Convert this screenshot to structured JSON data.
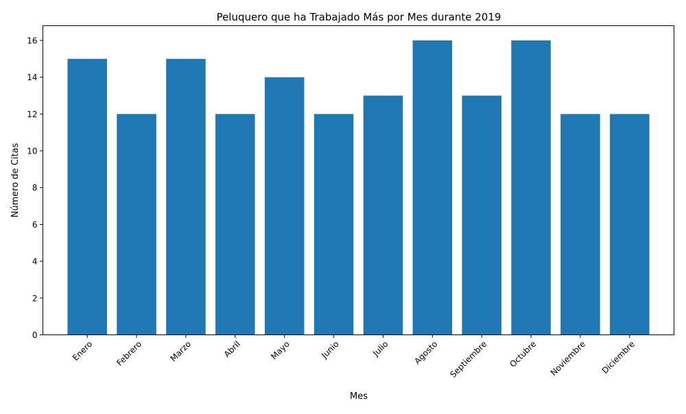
{
  "chart_data": {
    "type": "bar",
    "title": "Peluquero que ha Trabajado Más por Mes durante 2019",
    "xlabel": "Mes",
    "ylabel": "Número de Citas",
    "categories": [
      "Enero",
      "Febrero",
      "Marzo",
      "Abril",
      "Mayo",
      "Junio",
      "Julio",
      "Agosto",
      "Septiembre",
      "Octubre",
      "Noviembre",
      "Diciembre"
    ],
    "values": [
      15,
      12,
      15,
      12,
      14,
      12,
      13,
      16,
      13,
      16,
      12,
      12
    ],
    "ylim": [
      0,
      16.8
    ],
    "yticks": [
      0,
      2,
      4,
      6,
      8,
      10,
      12,
      14,
      16
    ],
    "grid": false,
    "legend": "none",
    "bar_color": "#1f77b4"
  }
}
